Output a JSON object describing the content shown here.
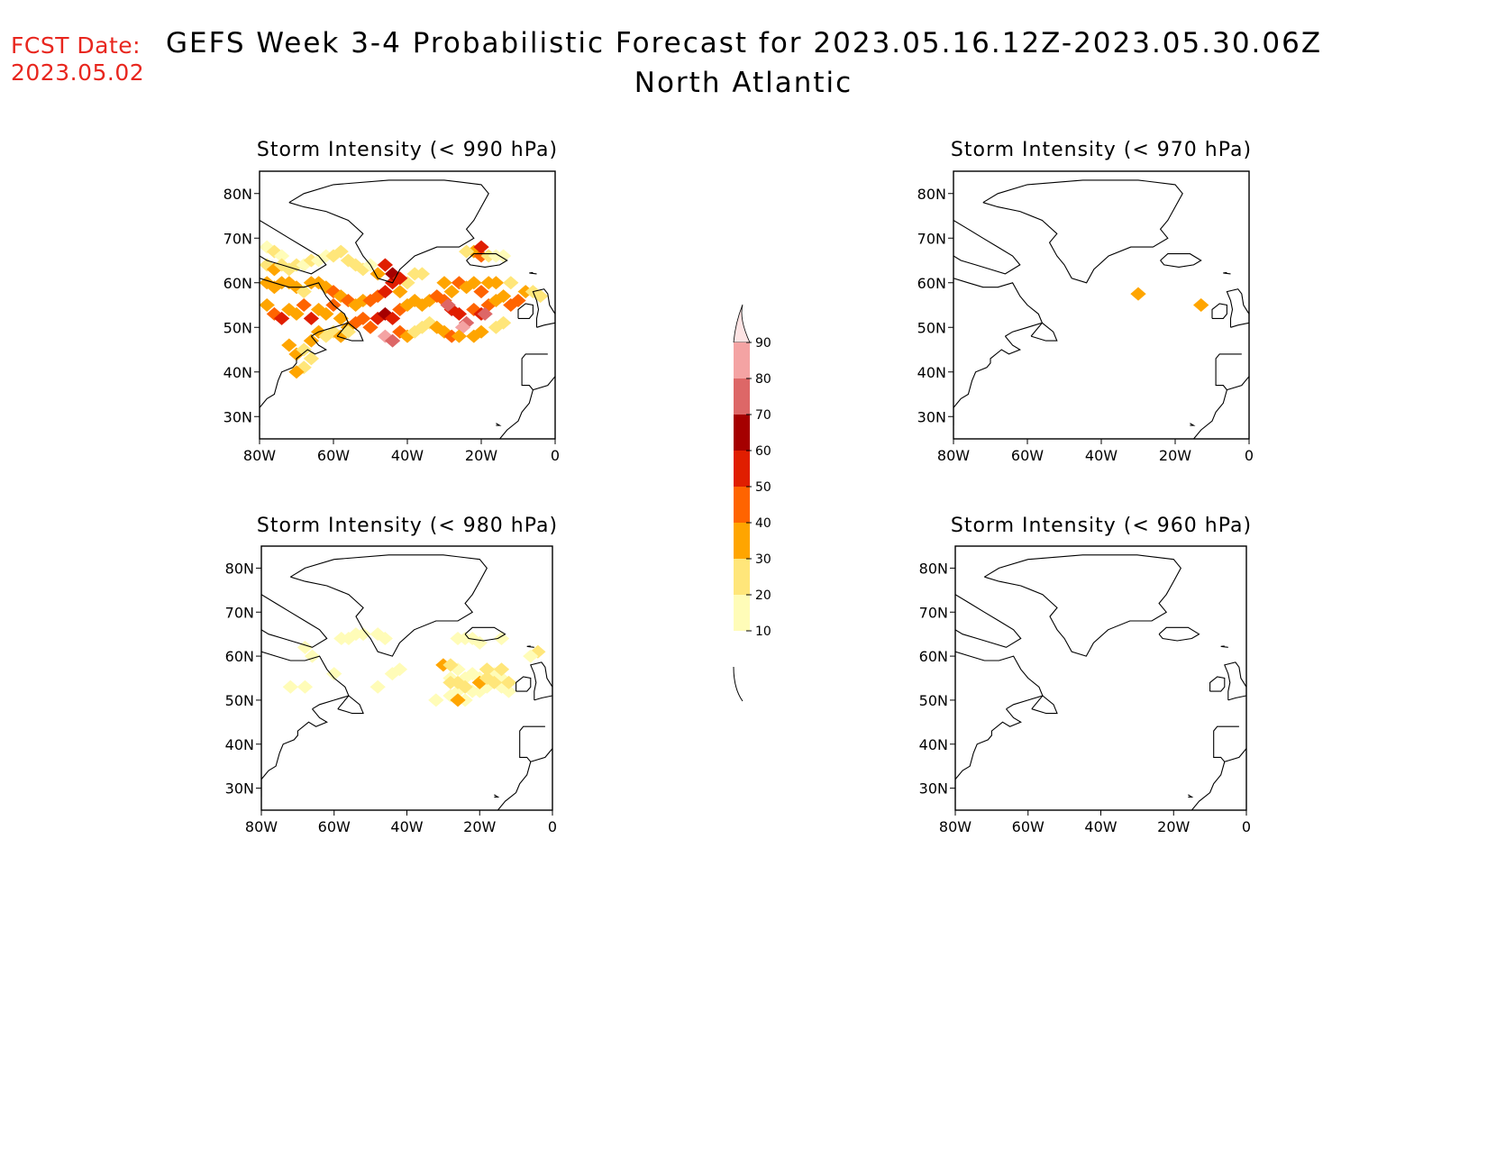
{
  "header": {
    "fcst_label": "FCST Date:",
    "fcst_date": "2023.05.02",
    "title": "GEFS Week 3-4 Probabilistic Forecast for 2023.05.16.12Z-2023.05.30.06Z",
    "subtitle": "North Atlantic"
  },
  "colors": {
    "fcst_text": "#e8261e",
    "levels": [
      "#fffcb8",
      "#ffe67a",
      "#ffa500",
      "#ff6400",
      "#e01e00",
      "#a50000",
      "#dd6767",
      "#f4a3a3",
      "#fde3e3"
    ]
  },
  "colorbar": {
    "labels": [
      "10",
      "20",
      "30",
      "40",
      "50",
      "60",
      "70",
      "80",
      "90"
    ]
  },
  "axes": {
    "lat_labels": [
      "80N",
      "70N",
      "60N",
      "50N",
      "40N",
      "30N"
    ],
    "lon_labels": [
      "80W",
      "60W",
      "40W",
      "20W",
      "0"
    ],
    "lat_values": [
      80,
      70,
      60,
      50,
      40,
      30
    ],
    "lon_values": [
      -80,
      -60,
      -40,
      -20,
      0
    ],
    "lat_range": [
      25,
      85
    ],
    "lon_range": [
      -80,
      0
    ]
  },
  "panels": [
    {
      "title": "Storm Intensity (< 990 hPa)",
      "cells": [
        [
          -78,
          68,
          1
        ],
        [
          -76,
          67,
          2
        ],
        [
          -74,
          66,
          1
        ],
        [
          -78,
          64,
          2
        ],
        [
          -76,
          63,
          3
        ],
        [
          -74,
          64,
          2
        ],
        [
          -72,
          63,
          2
        ],
        [
          -70,
          64,
          2
        ],
        [
          -68,
          64,
          1
        ],
        [
          -66,
          65,
          2
        ],
        [
          -64,
          65,
          1
        ],
        [
          -62,
          66,
          1
        ],
        [
          -60,
          66,
          2
        ],
        [
          -58,
          67,
          2
        ],
        [
          -56,
          65,
          2
        ],
        [
          -54,
          64,
          2
        ],
        [
          -52,
          63,
          2
        ],
        [
          -50,
          64,
          1
        ],
        [
          -78,
          60,
          3
        ],
        [
          -76,
          59,
          3
        ],
        [
          -74,
          60,
          3
        ],
        [
          -72,
          60,
          3
        ],
        [
          -70,
          59,
          3
        ],
        [
          -68,
          58,
          2
        ],
        [
          -66,
          60,
          3
        ],
        [
          -64,
          60,
          3
        ],
        [
          -62,
          59,
          3
        ],
        [
          -60,
          58,
          4
        ],
        [
          -58,
          57,
          3
        ],
        [
          -56,
          56,
          4
        ],
        [
          -54,
          55,
          3
        ],
        [
          -52,
          56,
          3
        ],
        [
          -50,
          56,
          4
        ],
        [
          -48,
          57,
          4
        ],
        [
          -46,
          58,
          5
        ],
        [
          -44,
          60,
          5
        ],
        [
          -42,
          58,
          3
        ],
        [
          -40,
          60,
          2
        ],
        [
          -38,
          62,
          2
        ],
        [
          -36,
          62,
          2
        ],
        [
          -78,
          55,
          3
        ],
        [
          -76,
          53,
          4
        ],
        [
          -74,
          52,
          5
        ],
        [
          -72,
          54,
          3
        ],
        [
          -70,
          53,
          3
        ],
        [
          -68,
          55,
          4
        ],
        [
          -66,
          52,
          5
        ],
        [
          -64,
          54,
          3
        ],
        [
          -62,
          53,
          3
        ],
        [
          -60,
          55,
          4
        ],
        [
          -58,
          52,
          3
        ],
        [
          -56,
          50,
          3
        ],
        [
          -54,
          51,
          4
        ],
        [
          -52,
          52,
          4
        ],
        [
          -50,
          50,
          4
        ],
        [
          -48,
          52,
          5
        ],
        [
          -46,
          53,
          6
        ],
        [
          -44,
          52,
          5
        ],
        [
          -42,
          54,
          4
        ],
        [
          -40,
          55,
          3
        ],
        [
          -38,
          56,
          3
        ],
        [
          -36,
          55,
          3
        ],
        [
          -34,
          56,
          3
        ],
        [
          -32,
          57,
          4
        ],
        [
          -30,
          56,
          4
        ],
        [
          -28,
          54,
          5
        ],
        [
          -26,
          53,
          5
        ],
        [
          -24,
          51,
          7
        ],
        [
          -22,
          54,
          4
        ],
        [
          -20,
          53,
          5
        ],
        [
          -18,
          55,
          4
        ],
        [
          -16,
          56,
          3
        ],
        [
          -14,
          57,
          3
        ],
        [
          -12,
          55,
          4
        ],
        [
          -10,
          56,
          4
        ],
        [
          -8,
          58,
          3
        ],
        [
          -6,
          58,
          2
        ],
        [
          -4,
          57,
          2
        ],
        [
          -30,
          60,
          3
        ],
        [
          -28,
          58,
          3
        ],
        [
          -26,
          60,
          4
        ],
        [
          -24,
          59,
          3
        ],
        [
          -22,
          60,
          3
        ],
        [
          -20,
          58,
          4
        ],
        [
          -18,
          60,
          3
        ],
        [
          -16,
          60,
          3
        ],
        [
          -12,
          60,
          2
        ],
        [
          -29,
          55,
          7
        ],
        [
          -25,
          50,
          8
        ],
        [
          -19,
          53,
          7
        ],
        [
          -46,
          48,
          8
        ],
        [
          -44,
          47,
          7
        ],
        [
          -42,
          49,
          4
        ],
        [
          -40,
          48,
          3
        ],
        [
          -38,
          49,
          2
        ],
        [
          -36,
          50,
          2
        ],
        [
          -34,
          51,
          2
        ],
        [
          -32,
          50,
          3
        ],
        [
          -30,
          49,
          3
        ],
        [
          -28,
          48,
          4
        ],
        [
          -26,
          48,
          3
        ],
        [
          -22,
          48,
          3
        ],
        [
          -20,
          49,
          3
        ],
        [
          -16,
          50,
          2
        ],
        [
          -14,
          51,
          2
        ],
        [
          -44,
          62,
          6
        ],
        [
          -42,
          61,
          5
        ],
        [
          -46,
          64,
          5
        ],
        [
          -48,
          62,
          3
        ],
        [
          -72,
          46,
          3
        ],
        [
          -70,
          44,
          3
        ],
        [
          -68,
          45,
          2
        ],
        [
          -66,
          47,
          3
        ],
        [
          -64,
          49,
          3
        ],
        [
          -62,
          48,
          2
        ],
        [
          -60,
          49,
          2
        ],
        [
          -58,
          48,
          3
        ],
        [
          -56,
          49,
          2
        ],
        [
          -68,
          41,
          2
        ],
        [
          -70,
          40,
          3
        ],
        [
          -66,
          43,
          2
        ],
        [
          -22,
          67,
          3
        ],
        [
          -20,
          66,
          4
        ],
        [
          -18,
          66,
          2
        ],
        [
          -16,
          66,
          1
        ],
        [
          -24,
          67,
          2
        ],
        [
          -20,
          68,
          5
        ],
        [
          -14,
          66,
          1
        ]
      ]
    },
    {
      "title": "Storm Intensity (< 970 hPa)",
      "cells": [
        [
          -30,
          57.5,
          2
        ],
        [
          -13,
          55,
          2
        ],
        [
          -30,
          57.5,
          3
        ],
        [
          -13,
          55,
          3
        ]
      ]
    },
    {
      "title": "Storm Intensity (< 980 hPa)",
      "cells": [
        [
          -66,
          60,
          1
        ],
        [
          -68,
          62,
          1
        ],
        [
          -56,
          64,
          1
        ],
        [
          -54,
          65,
          1
        ],
        [
          -52,
          65,
          1
        ],
        [
          -58,
          64,
          1
        ],
        [
          -48,
          65,
          1
        ],
        [
          -46,
          64,
          1
        ],
        [
          -44,
          56,
          1
        ],
        [
          -42,
          57,
          1
        ],
        [
          -48,
          53,
          1
        ],
        [
          -72,
          53,
          1
        ],
        [
          -68,
          53,
          1
        ],
        [
          -60,
          56,
          1
        ],
        [
          -30,
          58,
          3
        ],
        [
          -28,
          55,
          1
        ],
        [
          -26,
          57,
          1
        ],
        [
          -24,
          55,
          1
        ],
        [
          -22,
          56,
          1
        ],
        [
          -20,
          55,
          1
        ],
        [
          -18,
          57,
          1
        ],
        [
          -16,
          56,
          1
        ],
        [
          -14,
          55,
          1
        ],
        [
          -22,
          52,
          1
        ],
        [
          -24,
          50,
          1
        ],
        [
          -26,
          52,
          1
        ],
        [
          -20,
          52,
          1
        ],
        [
          -18,
          53,
          1
        ],
        [
          -14,
          53,
          1
        ],
        [
          -12,
          52,
          1
        ],
        [
          -32,
          50,
          1
        ],
        [
          -28,
          51,
          1
        ],
        [
          -28,
          54,
          2
        ],
        [
          -26,
          54,
          2
        ],
        [
          -24,
          53,
          2
        ],
        [
          -20,
          54,
          3
        ],
        [
          -18,
          55,
          2
        ],
        [
          -12,
          54,
          2
        ],
        [
          -26,
          50,
          3
        ],
        [
          -28,
          58,
          2
        ],
        [
          -18,
          57,
          2
        ],
        [
          -16,
          54,
          2
        ],
        [
          -14,
          57,
          2
        ],
        [
          -26,
          64,
          1
        ],
        [
          -24,
          64,
          1
        ],
        [
          -22,
          64,
          1
        ],
        [
          -20,
          63,
          1
        ],
        [
          -14,
          64,
          1
        ],
        [
          -4,
          61,
          2
        ],
        [
          -6,
          60,
          1
        ]
      ]
    },
    {
      "title": "Storm Intensity (< 960 hPa)",
      "cells": []
    }
  ]
}
